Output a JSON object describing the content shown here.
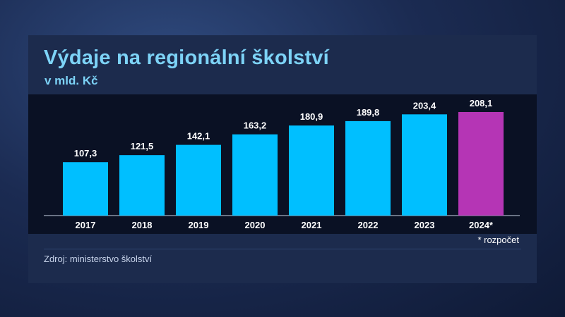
{
  "header": {
    "title": "Výdaje na regionální školství",
    "subtitle": "v mld. Kč"
  },
  "footnote": "* rozpočet",
  "source": "Zdroj: ministerstvo školství",
  "colors": {
    "bar": "#00bfff",
    "bar_highlight": "#b535b5",
    "title": "#7dd3f7"
  },
  "chart_data": {
    "type": "bar",
    "title": "Výdaje na regionální školství",
    "subtitle": "v mld. Kč",
    "categories": [
      "2017",
      "2018",
      "2019",
      "2020",
      "2021",
      "2022",
      "2023",
      "2024*"
    ],
    "values": [
      107.3,
      121.5,
      142.1,
      163.2,
      180.9,
      189.8,
      203.4,
      208.1
    ],
    "value_labels": [
      "107,3",
      "121,5",
      "142,1",
      "163,2",
      "180,9",
      "189,8",
      "203,4",
      "208,1"
    ],
    "highlight_index": 7,
    "ylim": [
      0,
      208.1
    ],
    "grid": false,
    "legend": "none"
  }
}
